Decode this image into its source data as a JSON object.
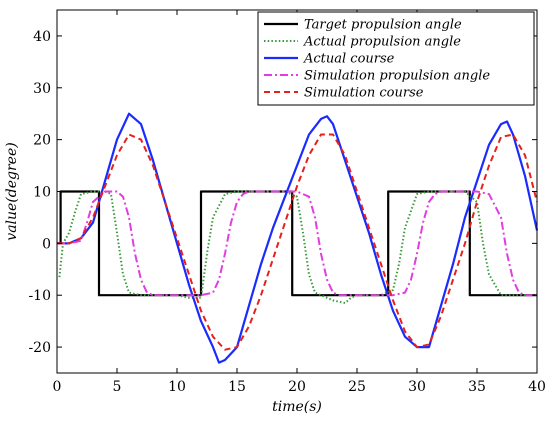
{
  "chart_data": {
    "type": "line",
    "title": "",
    "xlabel": "time(s)",
    "ylabel": "value(degree)",
    "xlim": [
      0,
      40
    ],
    "ylim": [
      -25,
      45
    ],
    "xticks": [
      0,
      5,
      10,
      15,
      20,
      25,
      30,
      35,
      40
    ],
    "yticks": [
      -20,
      -10,
      0,
      10,
      20,
      30,
      40
    ],
    "grid": false,
    "legend_position": "top-right",
    "series": [
      {
        "name": "Target propulsion angle",
        "color": "#000000",
        "style": "solid",
        "x": [
          0,
          0.3,
          0.3,
          3.5,
          3.5,
          12,
          12,
          19.6,
          19.6,
          27.6,
          27.6,
          34.4,
          34.4,
          40
        ],
        "y": [
          0,
          0,
          10,
          10,
          -10,
          -10,
          10,
          10,
          -10,
          -10,
          10,
          10,
          -10,
          -10
        ]
      },
      {
        "name": "Actual propulsion angle",
        "color": "#3a9a3a",
        "style": "dotted",
        "x": [
          0.2,
          0.5,
          1,
          1.5,
          2,
          3,
          4,
          4.5,
          5,
          5.5,
          6,
          7,
          8,
          9,
          10,
          11,
          12,
          12.5,
          13,
          14,
          15,
          19,
          20,
          20.5,
          21,
          21.5,
          22,
          23,
          24,
          24.5,
          25,
          27,
          28,
          28.5,
          29,
          30,
          31,
          34,
          35,
          35.5,
          36,
          37,
          38,
          40
        ],
        "y": [
          -6.5,
          0,
          2,
          6,
          9.5,
          10,
          10,
          9.5,
          2,
          -6,
          -9.5,
          -10,
          -10,
          -10,
          -10,
          -10.5,
          -10.5,
          -2,
          5,
          9.5,
          10,
          10,
          9,
          2,
          -6,
          -9.5,
          -10,
          -11,
          -11.5,
          -10.5,
          -10,
          -10,
          -9,
          -4,
          3,
          9.5,
          10,
          10,
          8,
          0,
          -6,
          -10,
          -10,
          -10
        ]
      },
      {
        "name": "Actual course",
        "color": "#1a2bff",
        "style": "solid",
        "x": [
          0,
          1,
          2,
          3,
          4,
          5,
          6,
          7,
          8,
          9,
          10,
          11,
          12,
          13,
          13.5,
          14,
          15,
          16,
          17,
          18,
          19,
          20,
          21,
          22,
          22.5,
          23,
          24,
          25,
          26,
          27,
          28,
          29,
          30,
          31,
          32,
          33,
          34,
          35,
          36,
          37,
          37.5,
          38,
          39,
          40
        ],
        "y": [
          0,
          0,
          1,
          4,
          12,
          20,
          25,
          23,
          16,
          8,
          0,
          -8,
          -15,
          -20,
          -23,
          -22.5,
          -20,
          -12,
          -4,
          3,
          9,
          15,
          21,
          24,
          24.5,
          23,
          16,
          9,
          2,
          -6,
          -13,
          -18,
          -20,
          -20,
          -12,
          -4,
          5,
          12,
          19,
          23,
          23.5,
          21,
          13,
          2.5
        ]
      },
      {
        "name": "Simulation propulsion angle",
        "color": "#e23ce2",
        "style": "dashdot",
        "x": [
          0,
          1,
          2,
          2.5,
          3,
          4,
          5,
          5.5,
          6,
          6.5,
          7,
          7.5,
          8,
          9,
          10,
          11,
          12,
          13,
          13.5,
          14,
          14.5,
          15,
          15.5,
          16,
          17,
          19,
          20,
          21,
          21.5,
          22,
          22.5,
          23,
          23.5,
          24,
          25,
          27,
          28,
          29,
          29.5,
          30,
          30.5,
          31,
          31.5,
          32,
          34,
          35,
          36,
          37,
          37.5,
          38,
          38.5,
          39,
          40
        ],
        "y": [
          0,
          0,
          0.5,
          4,
          8,
          10,
          10,
          9,
          5,
          -2,
          -7,
          -9.5,
          -10,
          -10,
          -10,
          -10,
          -10,
          -9.5,
          -7,
          -2,
          4,
          8,
          9.5,
          10,
          10,
          10,
          10,
          9,
          5,
          -2,
          -7,
          -9.5,
          -10,
          -10,
          -10,
          -10,
          -10,
          -9.5,
          -7,
          -2,
          4,
          8,
          9.5,
          10,
          10,
          10,
          9.5,
          5,
          -2,
          -7,
          -9.5,
          -10,
          -10
        ]
      },
      {
        "name": "Simulation course",
        "color": "#e6201a",
        "style": "dashed",
        "x": [
          0,
          1,
          2,
          3,
          4,
          5,
          6,
          7,
          8,
          9,
          10,
          11,
          12,
          13,
          14,
          15,
          16,
          17,
          18,
          19,
          20,
          21,
          22,
          23,
          24,
          25,
          26,
          27,
          28,
          29,
          30,
          31,
          32,
          33,
          34,
          35,
          36,
          37,
          38,
          39,
          40
        ],
        "y": [
          0,
          0,
          1,
          5,
          11,
          17,
          21,
          20,
          15,
          8,
          1,
          -6,
          -13,
          -18,
          -20.5,
          -20,
          -16,
          -10,
          -3,
          4,
          11,
          17,
          21,
          21,
          17,
          10,
          3,
          -4,
          -11,
          -17,
          -20,
          -19.5,
          -14,
          -7,
          0,
          8,
          15,
          20.5,
          21,
          17,
          8
        ]
      }
    ]
  }
}
